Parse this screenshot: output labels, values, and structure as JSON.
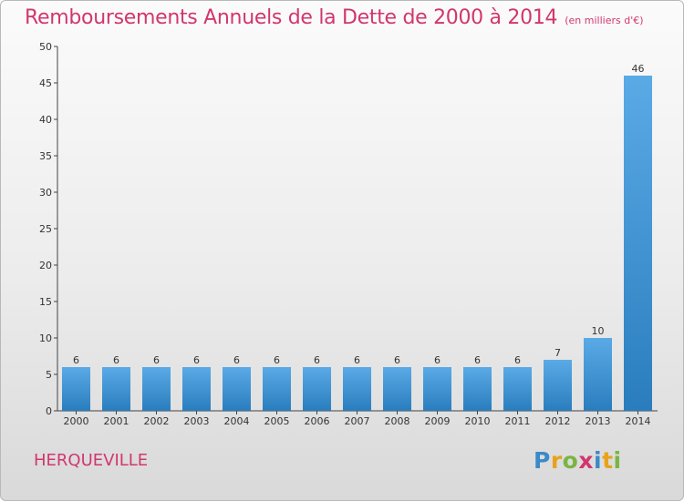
{
  "header": {
    "title": "Remboursements Annuels de la Dette de 2000 à 2014",
    "unit": "(en milliers d'€)"
  },
  "commune": "HERQUEVILLE",
  "logo": {
    "letters": [
      "P",
      "r",
      "o",
      "x",
      "i",
      "t",
      "i"
    ]
  },
  "colors": {
    "title": "#d2366e",
    "bar_top": "#5aaae6",
    "bar_bottom": "#2a7dbd"
  },
  "chart_data": {
    "type": "bar",
    "title": "Remboursements Annuels de la Dette de 2000 à 2014",
    "xlabel": "",
    "ylabel": "",
    "categories": [
      "2000",
      "2001",
      "2002",
      "2003",
      "2004",
      "2005",
      "2006",
      "2007",
      "2008",
      "2009",
      "2010",
      "2011",
      "2012",
      "2013",
      "2014"
    ],
    "values": [
      6,
      6,
      6,
      6,
      6,
      6,
      6,
      6,
      6,
      6,
      6,
      6,
      7,
      10,
      46
    ],
    "ylim": [
      0,
      50
    ],
    "yticks": [
      0,
      5,
      10,
      15,
      20,
      25,
      30,
      35,
      40,
      45,
      50
    ],
    "grid": false,
    "legend": "none"
  }
}
